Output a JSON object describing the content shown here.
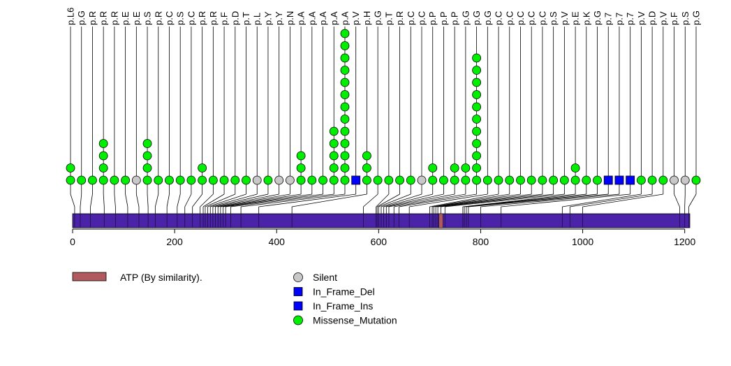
{
  "colors": {
    "protein": "#4b23a8",
    "domain": "#b05a5f",
    "silent": "#c8c8c8",
    "in_frame_del": "#0000ff",
    "in_frame_ins": "#0000ff",
    "missense": "#00ee00",
    "stroke": "#000000"
  },
  "chart_data": {
    "type": "lollipop",
    "axis": {
      "min": 0,
      "max": 1210,
      "ticks": [
        0,
        200,
        400,
        600,
        800,
        1000,
        1200
      ]
    },
    "protein": {
      "start": 0,
      "end": 1210
    },
    "domains": [
      {
        "name": "ATP (By similarity).",
        "start": 718,
        "end": 726
      }
    ],
    "legend": {
      "domains": [
        {
          "label": "ATP (By similarity).",
          "color_key": "domain"
        }
      ],
      "mutation_types": [
        {
          "label": "Silent",
          "shape": "circle",
          "color_key": "silent"
        },
        {
          "label": "In_Frame_Del",
          "shape": "square",
          "color_key": "in_frame_del"
        },
        {
          "label": "In_Frame_Ins",
          "shape": "square",
          "color_key": "in_frame_ins"
        },
        {
          "label": "Missense_Mutation",
          "shape": "circle",
          "color_key": "missense"
        }
      ]
    },
    "mutations": [
      {
        "label": "p.L6",
        "pos": 4,
        "type": "Missense_Mutation",
        "count": 2
      },
      {
        "label": "p.G",
        "pos": 15,
        "type": "Missense_Mutation",
        "count": 1
      },
      {
        "label": "p.R",
        "pos": 35,
        "type": "Missense_Mutation",
        "count": 1
      },
      {
        "label": "p.R",
        "pos": 62,
        "type": "Missense_Mutation",
        "count": 4
      },
      {
        "label": "p.R",
        "pos": 84,
        "type": "Missense_Mutation",
        "count": 1
      },
      {
        "label": "p.E",
        "pos": 108,
        "type": "Missense_Mutation",
        "count": 1
      },
      {
        "label": "p.E",
        "pos": 130,
        "type": "Silent",
        "count": 1
      },
      {
        "label": "p.S",
        "pos": 148,
        "type": "Missense_Mutation",
        "count": 4
      },
      {
        "label": "p.R",
        "pos": 162,
        "type": "Missense_Mutation",
        "count": 1
      },
      {
        "label": "p.C",
        "pos": 185,
        "type": "Missense_Mutation",
        "count": 1
      },
      {
        "label": "p.S",
        "pos": 205,
        "type": "Missense_Mutation",
        "count": 1
      },
      {
        "label": "p.C",
        "pos": 220,
        "type": "Missense_Mutation",
        "count": 1
      },
      {
        "label": "p.R",
        "pos": 235,
        "type": "Missense_Mutation",
        "count": 2
      },
      {
        "label": "p.R",
        "pos": 250,
        "type": "Missense_Mutation",
        "count": 1
      },
      {
        "label": "p.F",
        "pos": 256,
        "type": "Missense_Mutation",
        "count": 1
      },
      {
        "label": "p.D",
        "pos": 260,
        "type": "Missense_Mutation",
        "count": 1
      },
      {
        "label": "p.T",
        "pos": 265,
        "type": "Missense_Mutation",
        "count": 1
      },
      {
        "label": "p.L",
        "pos": 270,
        "type": "Silent",
        "count": 1
      },
      {
        "label": "p.Y",
        "pos": 275,
        "type": "Missense_Mutation",
        "count": 1
      },
      {
        "label": "p.Y",
        "pos": 280,
        "type": "Silent",
        "count": 1
      },
      {
        "label": "p.N",
        "pos": 285,
        "type": "Silent",
        "count": 1
      },
      {
        "label": "p.A",
        "pos": 290,
        "type": "Missense_Mutation",
        "count": 3
      },
      {
        "label": "p.A",
        "pos": 295,
        "type": "Missense_Mutation",
        "count": 1
      },
      {
        "label": "p.A",
        "pos": 300,
        "type": "Missense_Mutation",
        "count": 1
      },
      {
        "label": "p.A",
        "pos": 310,
        "type": "Missense_Mutation",
        "count": 5
      },
      {
        "label": "p.A",
        "pos": 330,
        "type": "Missense_Mutation",
        "count": 13
      },
      {
        "label": "p.V",
        "pos": 365,
        "type": "In_Frame_Del",
        "count": 1
      },
      {
        "label": "p.H",
        "pos": 430,
        "type": "Missense_Mutation",
        "count": 3
      },
      {
        "label": "p.G",
        "pos": 570,
        "type": "Missense_Mutation",
        "count": 1
      },
      {
        "label": "p.T",
        "pos": 595,
        "type": "Missense_Mutation",
        "count": 1
      },
      {
        "label": "p.R",
        "pos": 597,
        "type": "Missense_Mutation",
        "count": 1
      },
      {
        "label": "p.C",
        "pos": 600,
        "type": "Missense_Mutation",
        "count": 1
      },
      {
        "label": "p.C",
        "pos": 605,
        "type": "Silent",
        "count": 1
      },
      {
        "label": "p.P",
        "pos": 610,
        "type": "Missense_Mutation",
        "count": 2
      },
      {
        "label": "p.P",
        "pos": 615,
        "type": "Missense_Mutation",
        "count": 1
      },
      {
        "label": "p.P",
        "pos": 620,
        "type": "Missense_Mutation",
        "count": 2
      },
      {
        "label": "p.G",
        "pos": 630,
        "type": "Missense_Mutation",
        "count": 2
      },
      {
        "label": "p.G",
        "pos": 640,
        "type": "Missense_Mutation",
        "count": 11
      },
      {
        "label": "p.G",
        "pos": 660,
        "type": "Missense_Mutation",
        "count": 1
      },
      {
        "label": "p.C",
        "pos": 700,
        "type": "Missense_Mutation",
        "count": 1
      },
      {
        "label": "p.C",
        "pos": 705,
        "type": "Missense_Mutation",
        "count": 1
      },
      {
        "label": "p.C",
        "pos": 708,
        "type": "Missense_Mutation",
        "count": 1
      },
      {
        "label": "p.C",
        "pos": 712,
        "type": "Missense_Mutation",
        "count": 1
      },
      {
        "label": "p.C",
        "pos": 716,
        "type": "Missense_Mutation",
        "count": 1
      },
      {
        "label": "p.S",
        "pos": 722,
        "type": "Missense_Mutation",
        "count": 1
      },
      {
        "label": "p.V",
        "pos": 730,
        "type": "Missense_Mutation",
        "count": 1
      },
      {
        "label": "p.E",
        "pos": 765,
        "type": "Missense_Mutation",
        "count": 2
      },
      {
        "label": "p.K",
        "pos": 768,
        "type": "Missense_Mutation",
        "count": 1
      },
      {
        "label": "p.G",
        "pos": 772,
        "type": "Missense_Mutation",
        "count": 1
      },
      {
        "label": "p.7",
        "pos": 776,
        "type": "In_Frame_Ins",
        "count": 1
      },
      {
        "label": "p.7",
        "pos": 800,
        "type": "In_Frame_Ins",
        "count": 1
      },
      {
        "label": "p.7",
        "pos": 840,
        "type": "In_Frame_Ins",
        "count": 1
      },
      {
        "label": "p.V",
        "pos": 960,
        "type": "Missense_Mutation",
        "count": 1
      },
      {
        "label": "p.D",
        "pos": 975,
        "type": "Missense_Mutation",
        "count": 1
      },
      {
        "label": "p.V",
        "pos": 1000,
        "type": "Missense_Mutation",
        "count": 1
      },
      {
        "label": "p.F",
        "pos": 1190,
        "type": "Silent",
        "count": 1
      },
      {
        "label": "p.S",
        "pos": 1200,
        "type": "Silent",
        "count": 1
      },
      {
        "label": "p.G",
        "pos": 1208,
        "type": "Missense_Mutation",
        "count": 1
      }
    ]
  }
}
